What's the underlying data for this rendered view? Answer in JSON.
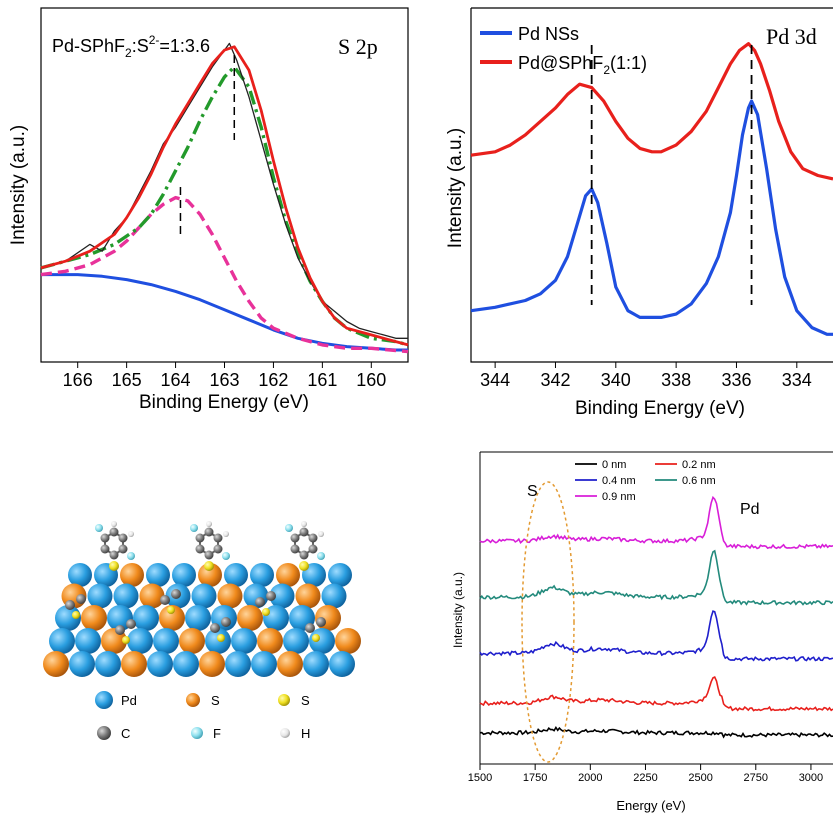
{
  "chart_data": [
    {
      "type": "line",
      "panel": "top-left",
      "annotation": "Pd-SPhF₂:S²⁻=1:3.6",
      "annotation_base": "Pd-SPhF",
      "annotation_sub": "2",
      "annotation_mid": ":S",
      "annotation_sup": "2-",
      "annotation_tail": "=1:3.6",
      "label": "S 2p",
      "xlabel": "Binding Energy (eV)",
      "ylabel": "Intensity (a.u.)",
      "xlim": [
        166.75,
        159.25
      ],
      "ylim": [
        0,
        1
      ],
      "xticks": [
        166,
        165,
        164,
        163,
        162,
        161,
        160
      ],
      "peak_markers": [
        163.9,
        162.8
      ],
      "colors": {
        "fit": "#e8201c",
        "raw": "#222222",
        "comp1": "#e8329a",
        "comp2": "#239a2b",
        "background": "#1f4fe0"
      },
      "series": [
        {
          "role": "raw",
          "x": [
            166.75,
            166.25,
            165.75,
            165.5,
            165.25,
            165.0,
            164.75,
            164.5,
            164.25,
            164.0,
            163.75,
            163.5,
            163.25,
            163.0,
            162.9,
            162.75,
            162.5,
            162.25,
            162.0,
            161.75,
            161.5,
            161.25,
            161.0,
            160.75,
            160.5,
            160.25,
            160.0,
            159.75,
            159.5,
            159.25
          ],
          "y": [
            0.26,
            0.28,
            0.33,
            0.31,
            0.37,
            0.41,
            0.48,
            0.55,
            0.63,
            0.68,
            0.74,
            0.8,
            0.86,
            0.91,
            0.93,
            0.88,
            0.77,
            0.64,
            0.51,
            0.39,
            0.29,
            0.22,
            0.16,
            0.13,
            0.1,
            0.08,
            0.07,
            0.06,
            0.05,
            0.05
          ]
        },
        {
          "role": "fit",
          "x": [
            166.75,
            166.25,
            165.75,
            165.25,
            165.0,
            164.75,
            164.5,
            164.25,
            164.0,
            163.75,
            163.5,
            163.25,
            163.0,
            162.8,
            162.5,
            162.25,
            162.0,
            161.75,
            161.5,
            161.25,
            161.0,
            160.75,
            160.5,
            160.0,
            159.5,
            159.25
          ],
          "y": [
            0.26,
            0.28,
            0.31,
            0.36,
            0.41,
            0.47,
            0.54,
            0.62,
            0.69,
            0.75,
            0.81,
            0.87,
            0.91,
            0.92,
            0.85,
            0.73,
            0.58,
            0.44,
            0.32,
            0.23,
            0.16,
            0.11,
            0.08,
            0.06,
            0.04,
            0.03
          ]
        },
        {
          "role": "comp1",
          "x": [
            166.75,
            166.25,
            165.75,
            165.25,
            165.0,
            164.75,
            164.5,
            164.25,
            164.0,
            163.75,
            163.5,
            163.25,
            163.0,
            162.75,
            162.5,
            162.25,
            162.0,
            161.5,
            161.0,
            160.5,
            160.0,
            159.25
          ],
          "y": [
            0.24,
            0.25,
            0.27,
            0.31,
            0.34,
            0.38,
            0.42,
            0.45,
            0.47,
            0.46,
            0.42,
            0.36,
            0.29,
            0.22,
            0.16,
            0.11,
            0.08,
            0.05,
            0.03,
            0.02,
            0.02,
            0.01
          ]
        },
        {
          "role": "comp2",
          "x": [
            166.75,
            166.25,
            165.75,
            165.25,
            164.75,
            164.5,
            164.25,
            164.0,
            163.75,
            163.5,
            163.25,
            163.0,
            162.8,
            162.5,
            162.25,
            162.0,
            161.75,
            161.5,
            161.25,
            161.0,
            160.75,
            160.5,
            160.0,
            159.5,
            159.25
          ],
          "y": [
            0.26,
            0.28,
            0.3,
            0.33,
            0.38,
            0.42,
            0.48,
            0.55,
            0.62,
            0.7,
            0.77,
            0.83,
            0.86,
            0.8,
            0.68,
            0.53,
            0.4,
            0.3,
            0.22,
            0.16,
            0.11,
            0.08,
            0.05,
            0.04,
            0.03
          ]
        },
        {
          "role": "background",
          "x": [
            166.75,
            166.0,
            165.5,
            165.0,
            164.5,
            164.0,
            163.5,
            163.0,
            162.5,
            162.0,
            161.5,
            161.0,
            160.5,
            160.0,
            159.5,
            159.25
          ],
          "y": [
            0.24,
            0.24,
            0.235,
            0.225,
            0.21,
            0.19,
            0.165,
            0.135,
            0.105,
            0.075,
            0.05,
            0.035,
            0.025,
            0.02,
            0.015,
            0.015
          ]
        }
      ]
    },
    {
      "type": "line",
      "panel": "top-right",
      "label": "Pd 3d",
      "xlabel": "Binding Energy (eV)",
      "ylabel": "Intensity (a.u.)",
      "xlim": [
        344.8,
        332.8
      ],
      "ylim": [
        0,
        1
      ],
      "xticks": [
        344,
        342,
        340,
        338,
        336,
        334
      ],
      "peak_markers": [
        340.8,
        335.5
      ],
      "legend": "top-left",
      "series": [
        {
          "name": "Pd NSs",
          "color": "#1f4fe0",
          "x": [
            344.8,
            344.0,
            343.0,
            342.5,
            342.0,
            341.6,
            341.3,
            341.0,
            340.8,
            340.6,
            340.3,
            340.0,
            339.6,
            339.2,
            338.5,
            338.0,
            337.5,
            337.0,
            336.6,
            336.2,
            336.0,
            335.8,
            335.6,
            335.5,
            335.3,
            335.0,
            334.7,
            334.4,
            334.0,
            333.5,
            333.0,
            332.8
          ],
          "y": [
            0.14,
            0.15,
            0.17,
            0.19,
            0.23,
            0.3,
            0.39,
            0.48,
            0.5,
            0.46,
            0.34,
            0.21,
            0.14,
            0.12,
            0.12,
            0.13,
            0.16,
            0.22,
            0.3,
            0.43,
            0.54,
            0.66,
            0.74,
            0.76,
            0.72,
            0.56,
            0.38,
            0.24,
            0.14,
            0.09,
            0.07,
            0.07
          ]
        },
        {
          "name": "Pd@SPhF₂(1:1)",
          "name_base": "Pd@SPhF",
          "name_sub": "2",
          "name_tail": "(1:1)",
          "color": "#e8201c",
          "x": [
            344.8,
            344.0,
            343.5,
            343.0,
            342.5,
            342.0,
            341.6,
            341.2,
            340.8,
            340.4,
            340.0,
            339.6,
            339.2,
            338.8,
            338.5,
            338.0,
            337.5,
            337.0,
            336.6,
            336.2,
            335.9,
            335.6,
            335.4,
            335.2,
            334.9,
            334.6,
            334.2,
            333.8,
            333.3,
            332.8
          ],
          "y": [
            0.6,
            0.61,
            0.63,
            0.66,
            0.7,
            0.74,
            0.78,
            0.81,
            0.8,
            0.76,
            0.7,
            0.65,
            0.62,
            0.61,
            0.61,
            0.63,
            0.67,
            0.73,
            0.8,
            0.87,
            0.91,
            0.93,
            0.91,
            0.87,
            0.79,
            0.7,
            0.61,
            0.56,
            0.54,
            0.53
          ]
        }
      ]
    },
    {
      "type": "line",
      "panel": "bottom-right",
      "xlabel": "Energy (eV)",
      "ylabel": "Intensity (a.u.)",
      "xlim": [
        1500,
        3100
      ],
      "ylim": [
        0,
        1
      ],
      "xticks": [
        1500,
        1750,
        2000,
        2250,
        2500,
        2750,
        3000
      ],
      "region_labels": {
        "s": "S",
        "pd": "Pd"
      },
      "legend": "top",
      "ellipse_color": "#e39a32",
      "series": [
        {
          "name": "0 nm",
          "color": "#000000",
          "offset": 0.1,
          "bump_s": 0.012,
          "bump_pd": 0.0
        },
        {
          "name": "0.2 nm",
          "color": "#e8201c",
          "offset": 0.195,
          "bump_s": 0.02,
          "bump_pd": 0.07
        },
        {
          "name": "0.4 nm",
          "color": "#1f1fcc",
          "offset": 0.355,
          "bump_s": 0.03,
          "bump_pd": 0.13
        },
        {
          "name": "0.6 nm",
          "color": "#238a7c",
          "offset": 0.535,
          "bump_s": 0.03,
          "bump_pd": 0.14
        },
        {
          "name": "0.9 nm",
          "color": "#d81ed8",
          "offset": 0.715,
          "bump_s": 0.015,
          "bump_pd": 0.13
        }
      ]
    }
  ],
  "model": {
    "legend": [
      {
        "label": "Pd",
        "color": "#2a9ee0"
      },
      {
        "label": "S",
        "color": "#f08a1c"
      },
      {
        "label": "S",
        "color": "#f0e020"
      },
      {
        "label": "C",
        "color": "#7a7a7a"
      },
      {
        "label": "F",
        "color": "#8ee0ee"
      },
      {
        "label": "H",
        "color": "#f2f2f2"
      }
    ]
  }
}
